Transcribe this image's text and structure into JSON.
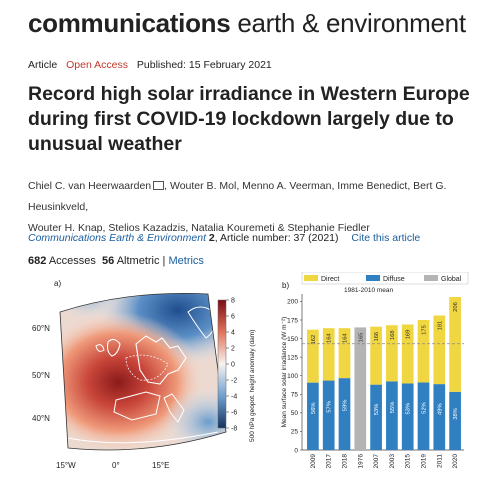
{
  "brand": {
    "bold": "communications",
    "rest": " earth & environment"
  },
  "meta": {
    "type": "Article",
    "access": "Open Access",
    "published": "Published: 15 February 2021"
  },
  "article": {
    "title": "Record high solar irradiance in Western Europe during first COVID-19 lockdown largely due to unusual weather",
    "authors_line1": "Chiel C. van Heerwaarden",
    "authors_line1b": ", Wouter B. Mol, Menno A. Veerman, Imme Benedict, Bert G. Heusinkveld,",
    "authors_line2": "Wouter H. Knap, Stelios Kazadzis, Natalia Kouremeti & Stephanie Fiedler",
    "journal": "Communications Earth & Environment",
    "volume": "2",
    "article_number": ", Article number: 37 (2021)",
    "cite": "Cite this article"
  },
  "metrics": {
    "accesses": "682",
    "accesses_label": "Accesses",
    "altmetric": "56",
    "altmetric_label": "Altmetric",
    "metrics_link": "Metrics"
  },
  "map": {
    "panel": "a)",
    "lat_labels": [
      "60°N",
      "50°N",
      "40°N"
    ],
    "lon_labels": [
      "15°W",
      "0°",
      "15°E"
    ],
    "colorbar_ticks": [
      "8",
      "6",
      "4",
      "2",
      "0",
      "-2",
      "-4",
      "-6",
      "-8"
    ],
    "colorbar_label": "500 hPa geopot. height anomaly (dam)"
  },
  "chart_data": {
    "type": "bar",
    "panel": "b)",
    "legend": [
      "Direct",
      "Diffuse",
      "Global"
    ],
    "subtitle": "1981-2010 mean",
    "ylabel": "Mean surface solar irradiance (W m⁻²)",
    "ylim": [
      0,
      210
    ],
    "yticks": [
      "0",
      "25",
      "50",
      "75",
      "100",
      "125",
      "150",
      "175",
      "200"
    ],
    "categories": [
      "2009",
      "2017",
      "2018",
      "1976",
      "2007",
      "2003",
      "2015",
      "2019",
      "2011",
      "2020"
    ],
    "totals": [
      162,
      164,
      164,
      165,
      166,
      168,
      169,
      175,
      181,
      206
    ],
    "diffuse_pct": [
      "56%",
      "57%",
      "59%",
      "",
      "53%",
      "55%",
      "53%",
      "52%",
      "49%",
      "38%"
    ],
    "mean_line": 143,
    "colors": {
      "direct": "#f0d640",
      "diffuse": "#2f7fc1",
      "global": "#b4b4b4"
    }
  }
}
